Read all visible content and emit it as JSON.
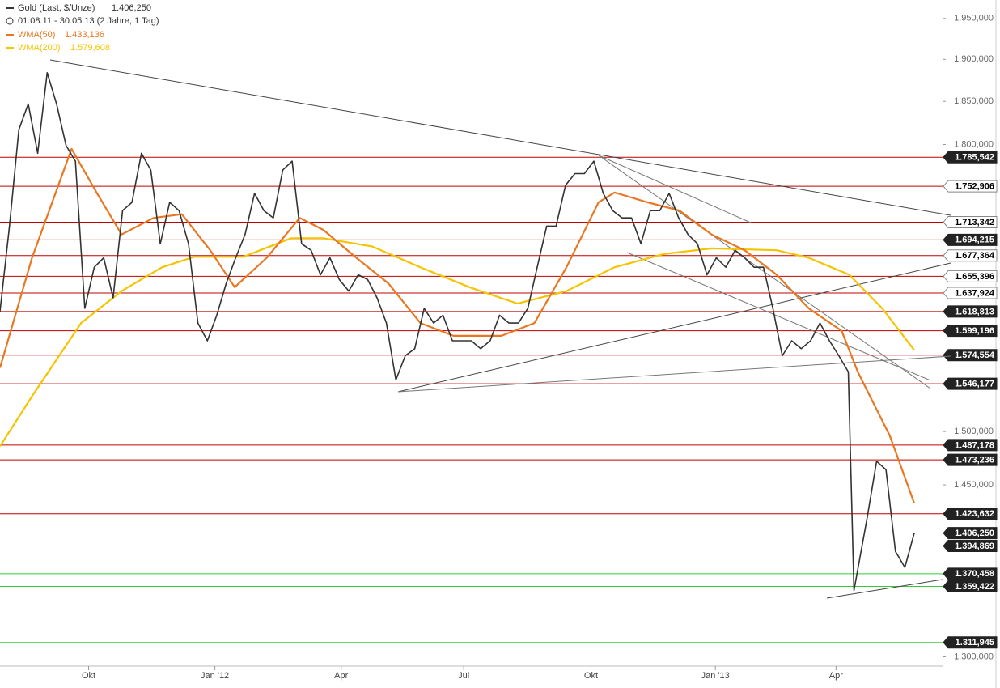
{
  "chart_data": {
    "type": "line",
    "title": "Gold (Last, $/Unze)",
    "subtitle": "01.08.11 - 30.05.13 (2 Jahre, 1 Tag)",
    "log_scale": true,
    "xlim": [
      0,
      100
    ],
    "xticks": [
      {
        "value": 9.4,
        "label": "Okt"
      },
      {
        "value": 22.8,
        "label": "Jan '12"
      },
      {
        "value": 36.2,
        "label": "Apr"
      },
      {
        "value": 49.2,
        "label": "Jul"
      },
      {
        "value": 62.7,
        "label": "Okt"
      },
      {
        "value": 75.9,
        "label": "Jan '13"
      },
      {
        "value": 88.7,
        "label": "Apr"
      }
    ],
    "ylim": [
      1293,
      1973
    ],
    "yticks": [
      {
        "value": 1950,
        "label": "1.950,000"
      },
      {
        "value": 1900,
        "label": "1.900,000"
      },
      {
        "value": 1850,
        "label": "1.850,000"
      },
      {
        "value": 1800,
        "label": "1.800,000"
      },
      {
        "value": 1500,
        "label": "1.500,000"
      },
      {
        "value": 1450,
        "label": "1.450,000"
      },
      {
        "value": 1300,
        "label": "1.300,000"
      }
    ],
    "series": [
      {
        "name": "Gold (Last, $/Unze)",
        "color": "#333333",
        "last_label": "1.406,250",
        "x": [
          0,
          1,
          2,
          3,
          4,
          5,
          6,
          7,
          8,
          9,
          10,
          11,
          12,
          13,
          14,
          15,
          16,
          17,
          18,
          19,
          20,
          21,
          22,
          23,
          24,
          25,
          26,
          27,
          28,
          29,
          30,
          31,
          32,
          33,
          34,
          35,
          36,
          37,
          38,
          39,
          40,
          41,
          42,
          43,
          44,
          45,
          46,
          47,
          48,
          49,
          50,
          51,
          52,
          53,
          54,
          55,
          56,
          57,
          58,
          59,
          60,
          61,
          62,
          63,
          64,
          65,
          66,
          67,
          68,
          69,
          70,
          71,
          72,
          73,
          74,
          75,
          76,
          77,
          78,
          79,
          80,
          81,
          82,
          83,
          84,
          85,
          86,
          87,
          88,
          89,
          90,
          90.6,
          92,
          93,
          94,
          95,
          96,
          97
        ],
        "values": [
          1619,
          1709,
          1817,
          1847,
          1790,
          1884,
          1847,
          1799,
          1781,
          1622,
          1665,
          1675,
          1633,
          1726,
          1735,
          1790,
          1771,
          1690,
          1735,
          1726,
          1690,
          1607,
          1589,
          1615,
          1648,
          1675,
          1700,
          1745,
          1726,
          1718,
          1771,
          1781,
          1690,
          1683,
          1657,
          1675,
          1652,
          1640,
          1657,
          1652,
          1633,
          1607,
          1550,
          1574,
          1581,
          1622,
          1607,
          1615,
          1589,
          1589,
          1589,
          1581,
          1589,
          1615,
          1607,
          1607,
          1622,
          1665,
          1709,
          1709,
          1754,
          1767,
          1767,
          1781,
          1745,
          1726,
          1718,
          1718,
          1690,
          1726,
          1726,
          1745,
          1718,
          1700,
          1690,
          1657,
          1675,
          1665,
          1683,
          1675,
          1665,
          1665,
          1622,
          1574,
          1589,
          1581,
          1589,
          1607,
          1589,
          1574,
          1558,
          1356,
          1420,
          1472,
          1464,
          1390,
          1376,
          1406.25
        ]
      },
      {
        "name": "WMA(50)",
        "color": "#e87722",
        "last_label": "1.433,136",
        "x": [
          0,
          3.4,
          7.6,
          10.3,
          12.9,
          16.3,
          19.3,
          22.3,
          24.9,
          28.3,
          31.8,
          34.3,
          37.8,
          41.2,
          44.6,
          48.1,
          53.2,
          56.7,
          60.1,
          63.5,
          65.2,
          68.7,
          72.1,
          75.5,
          79,
          82.4,
          85.8,
          89.3,
          91,
          94.4,
          97
        ],
        "values": [
          1562,
          1675,
          1795,
          1745,
          1700,
          1718,
          1722,
          1683,
          1644,
          1675,
          1718,
          1705,
          1675,
          1648,
          1607,
          1594,
          1594,
          1607,
          1665,
          1735,
          1746,
          1735,
          1726,
          1700,
          1683,
          1657,
          1622,
          1599,
          1558,
          1496,
          1433.136
        ]
      },
      {
        "name": "WMA(200)",
        "color": "#f5c400",
        "last_label": "1.579,608",
        "x": [
          0,
          3.4,
          8.6,
          12.9,
          17.2,
          20.6,
          25.8,
          30.9,
          34.3,
          39.5,
          44.6,
          49.8,
          54.9,
          60.1,
          65.2,
          70.4,
          75.5,
          82.4,
          85.8,
          90.1,
          93.6,
          97
        ],
        "values": [
          1486,
          1534,
          1607,
          1640,
          1665,
          1676,
          1676,
          1696,
          1696,
          1687,
          1665,
          1644,
          1627,
          1640,
          1665,
          1679,
          1685,
          1683,
          1675,
          1657,
          1622,
          1579.608
        ]
      }
    ],
    "levels": [
      {
        "value": 1785.542,
        "label": "1.785,542",
        "color": "#c00000",
        "label_fill": "#222222"
      },
      {
        "value": 1752.906,
        "label": "1.752,906",
        "color": "#c00000",
        "label_fill": "#ffffff"
      },
      {
        "value": 1713.342,
        "label": "1.713,342",
        "color": "#c00000",
        "label_fill": "#ffffff"
      },
      {
        "value": 1694.215,
        "label": "1.694,215",
        "color": "#c00000",
        "label_fill": "#222222"
      },
      {
        "value": 1677.364,
        "label": "1.677,364",
        "color": "#c00000",
        "label_fill": "#ffffff"
      },
      {
        "value": 1655.396,
        "label": "1.655,396",
        "color": "#c00000",
        "label_fill": "#ffffff"
      },
      {
        "value": 1637.924,
        "label": "1.637,924",
        "color": "#c00000",
        "label_fill": "#ffffff"
      },
      {
        "value": 1618.813,
        "label": "1.618,813",
        "color": "#c00000",
        "label_fill": "#222222"
      },
      {
        "value": 1599.196,
        "label": "1.599,196",
        "color": "#c00000",
        "label_fill": "#222222"
      },
      {
        "value": 1574.554,
        "label": "1.574,554",
        "color": "#c00000",
        "label_fill": "#222222"
      },
      {
        "value": 1546.177,
        "label": "1.546,177",
        "color": "#c00000",
        "label_fill": "#222222"
      },
      {
        "value": 1487.178,
        "label": "1.487,178",
        "color": "#c00000",
        "label_fill": "#222222"
      },
      {
        "value": 1473.236,
        "label": "1.473,236",
        "color": "#c00000",
        "label_fill": "#222222"
      },
      {
        "value": 1423.632,
        "label": "1.423,632",
        "color": "#c00000",
        "label_fill": "#222222"
      },
      {
        "value": 1394.869,
        "label": "1.394,869",
        "color": "#c00000",
        "label_fill": "#222222"
      },
      {
        "value": 1370.458,
        "label": "1.370,458",
        "color": "#33cc33",
        "label_fill": "#222222"
      },
      {
        "value": 1359.422,
        "label": "1.359,422",
        "color": "#33cc33",
        "label_fill": "#222222"
      },
      {
        "value": 1311.945,
        "label": "1.311,945",
        "color": "#33cc33",
        "label_fill": "#222222"
      }
    ]
  }
}
